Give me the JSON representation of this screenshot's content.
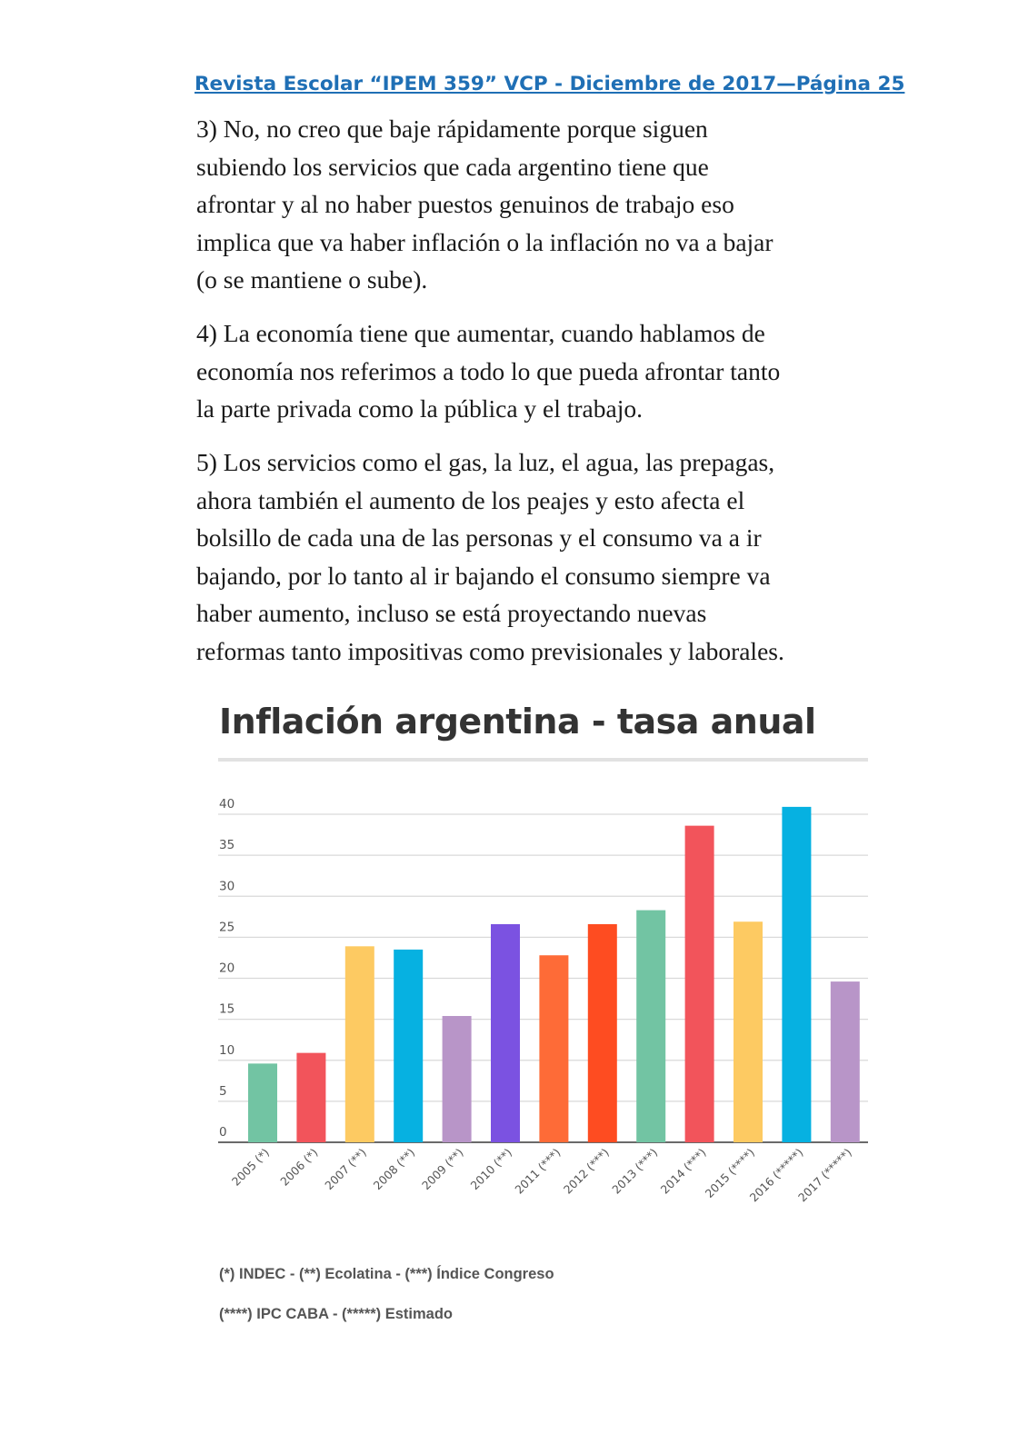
{
  "header": {
    "text": "Revista Escolar “IPEM 359” VCP - Diciembre de 2017—Página 25"
  },
  "article": {
    "p3": [
      "3) No, no creo que baje rápidamente porque siguen",
      "subiendo los servicios que cada argentino tiene que",
      "afrontar y al no haber puestos genuinos de trabajo eso",
      "implica que va haber inflación o la inflación no va a bajar",
      "(o se mantiene o sube)."
    ],
    "p4": [
      "4) La economía tiene que aumentar, cuando hablamos de",
      "economía nos referimos a todo lo que pueda afrontar tanto",
      "la parte privada como la pública y el trabajo."
    ],
    "p5": [
      "5) Los servicios como el gas, la luz, el agua, las prepagas,",
      "ahora también el aumento de los peajes y esto afecta el",
      "bolsillo de cada una de las personas y el consumo va a ir",
      "bajando, por lo tanto al ir bajando el consumo siempre va",
      "haber aumento, incluso se está proyectando nuevas",
      "reformas tanto impositivas como previsionales y laborales."
    ]
  },
  "chart_data": {
    "type": "bar",
    "title": "Inflación argentina - tasa anual",
    "categories": [
      "2005 (*)",
      "2006 (*)",
      "2007 (**)",
      "2008 (**)",
      "2009 (**)",
      "2010 (**)",
      "2011 (***)",
      "2012 (***)",
      "2013 (***)",
      "2014 (***)",
      "2015 (****)",
      "2016 (*****)",
      "2017 (*****)"
    ],
    "values": [
      9.6,
      10.9,
      23.9,
      23.5,
      15.4,
      26.6,
      22.8,
      26.6,
      28.3,
      38.6,
      26.9,
      40.9,
      19.6
    ],
    "colors": [
      "#72c4a3",
      "#f2545b",
      "#fdca62",
      "#06b1e1",
      "#b895c8",
      "#7b52e1",
      "#fe6b37",
      "#fe4c21",
      "#72c4a3",
      "#f2545b",
      "#fdca62",
      "#06b1e1",
      "#b895c8"
    ],
    "yticks": [
      0,
      5,
      10,
      15,
      20,
      25,
      30,
      35,
      40
    ],
    "ylim": [
      0,
      40
    ],
    "grid": true,
    "notes": [
      "(*) INDEC -   (**) Ecolatina  -  (***) Índice Congreso",
      "(****) IPC CABA  -  (*****) Estimado"
    ]
  }
}
